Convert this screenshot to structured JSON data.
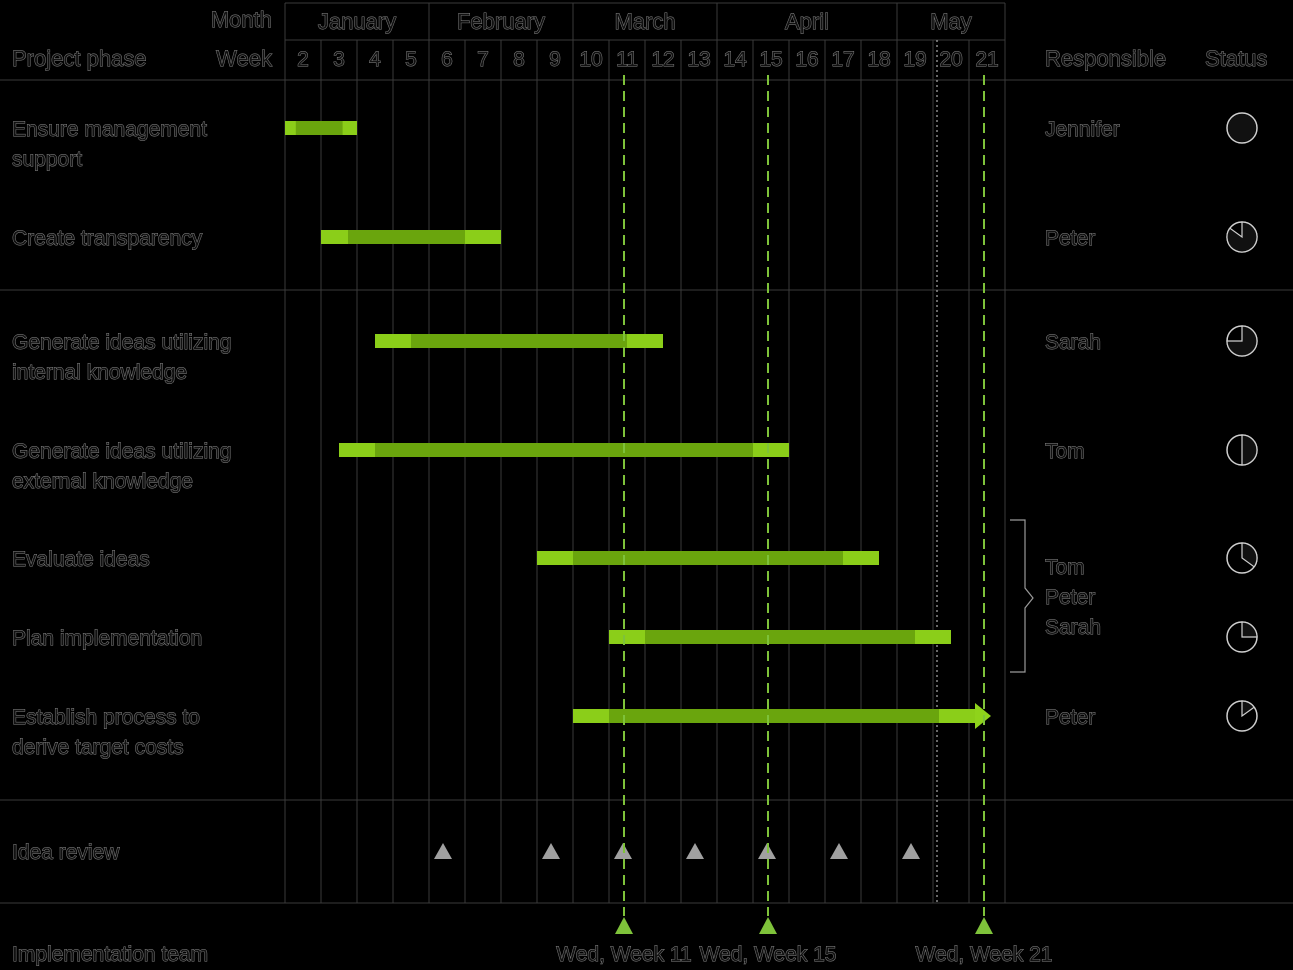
{
  "header": {
    "month_label": "Month",
    "week_label": "Week",
    "phase_label": "Project phase",
    "responsible_label": "Responsible",
    "status_label": "Status"
  },
  "colors": {
    "bar_dark": "#6aa50d",
    "bar_light": "#8fd31b",
    "milestone_green": "#7ec23a",
    "milestone_gray": "#a0a0a0",
    "grid": "#3a3a3a",
    "label_outline": "#8a8a8a"
  },
  "chart_data": {
    "type": "gantt",
    "months": [
      {
        "name": "January",
        "weeks": [
          2,
          3,
          4,
          5
        ]
      },
      {
        "name": "February",
        "weeks": [
          6,
          7,
          8,
          9
        ]
      },
      {
        "name": "March",
        "weeks": [
          10,
          11,
          12,
          13
        ]
      },
      {
        "name": "April",
        "weeks": [
          14,
          15,
          16,
          17,
          18
        ]
      },
      {
        "name": "May",
        "weeks": [
          19,
          20,
          21
        ]
      }
    ],
    "weeks": [
      2,
      3,
      4,
      5,
      6,
      7,
      8,
      9,
      10,
      11,
      12,
      13,
      14,
      15,
      16,
      17,
      18,
      19,
      20,
      21
    ],
    "tasks": [
      {
        "lines": [
          "Ensure management",
          "support"
        ],
        "start_week": 2,
        "end_week": 3,
        "responsible": [
          "Jennifer"
        ],
        "status_fraction": 1.0
      },
      {
        "lines": [
          "Create transparency"
        ],
        "start_week": 3,
        "end_week": 7,
        "responsible": [
          "Peter"
        ],
        "status_fraction": 0.85
      },
      {
        "lines": [
          "Generate ideas utilizing",
          "internal knowledge"
        ],
        "start_week": 4.5,
        "end_week": 11.5,
        "responsible": [
          "Sarah"
        ],
        "status_fraction": 0.75
      },
      {
        "lines": [
          "Generate ideas utilizing",
          "external knowledge"
        ],
        "start_week": 3.5,
        "end_week": 15,
        "responsible": [
          "Tom"
        ],
        "status_fraction": 0.5
      },
      {
        "lines": [
          "Evaluate ideas"
        ],
        "start_week": 9,
        "end_week": 17.5,
        "responsible": [
          "Tom",
          "Peter",
          "Sarah"
        ],
        "status_fraction": 0.35
      },
      {
        "lines": [
          "Plan implementation"
        ],
        "start_week": 11,
        "end_week": 19.5,
        "responsible": [],
        "status_fraction": 0.25
      },
      {
        "lines": [
          "Establish process to",
          "derive target costs"
        ],
        "start_week": 10,
        "end_week": 21,
        "responsible": [
          "Peter"
        ],
        "status_fraction": 0.15,
        "arrow": true
      }
    ],
    "idea_review": {
      "label": "Idea review",
      "weeks": [
        6,
        9,
        11,
        13,
        15,
        17,
        19
      ]
    },
    "implementation_team": {
      "label": "Implementation team",
      "milestones": [
        {
          "week": 11,
          "label": "Wed, Week 11"
        },
        {
          "week": 15,
          "label": "Wed, Week 15"
        },
        {
          "week": 21,
          "label": "Wed, Week 21"
        }
      ]
    }
  }
}
